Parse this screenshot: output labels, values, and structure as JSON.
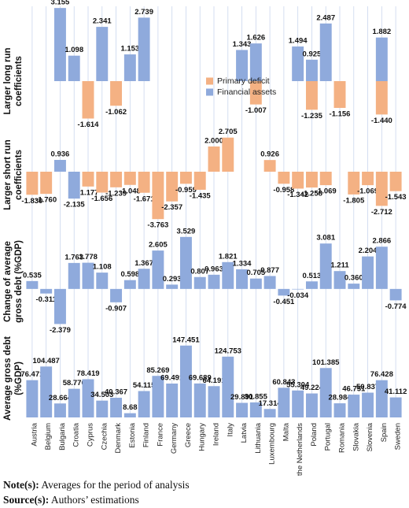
{
  "chart_data": {
    "type": "bar",
    "categories": [
      "Austria",
      "Belgium",
      "Bulgaria",
      "Croatia",
      "Cyprus",
      "Czechia",
      "Denmark",
      "Estonia",
      "Finland",
      "France",
      "Germany",
      "Greece",
      "Hungary",
      "Ireland",
      "Italy",
      "Latvia",
      "Lithuania",
      "Luxembourg",
      "Malta",
      "the Netherlands",
      "Poland",
      "Portugal",
      "Romania",
      "Slovakia",
      "Slovenia",
      "Spain",
      "Sweden"
    ],
    "panels": [
      {
        "ylabel": [
          "Larger long run",
          "coefficients"
        ],
        "ylim": [
          -3.5,
          3.5
        ],
        "series": [
          {
            "name": "Primary deficit",
            "color": "#f4b183",
            "values": [
              null,
              null,
              null,
              null,
              -1.614,
              null,
              -1.062,
              null,
              null,
              null,
              null,
              null,
              null,
              null,
              null,
              null,
              -1.007,
              null,
              null,
              null,
              -1.235,
              null,
              -1.156,
              null,
              null,
              -1.44,
              null
            ],
            "value_labels": [
              null,
              null,
              null,
              null,
              "-1.614",
              null,
              "-1.062",
              null,
              null,
              null,
              null,
              null,
              null,
              null,
              null,
              null,
              "-1.007",
              null,
              null,
              null,
              "-1.235",
              null,
              "-1.156",
              null,
              null,
              "-1.440",
              null
            ]
          },
          {
            "name": "Financial assets",
            "color": "#8faadc",
            "values": [
              null,
              null,
              3.155,
              1.098,
              null,
              2.341,
              null,
              1.153,
              2.739,
              null,
              null,
              null,
              null,
              null,
              null,
              1.343,
              1.626,
              null,
              null,
              1.494,
              0.925,
              2.487,
              null,
              null,
              null,
              1.882,
              null
            ],
            "value_labels": [
              null,
              null,
              "3.155",
              "1.098",
              null,
              "2.341",
              null,
              "1.153",
              "2.739",
              null,
              null,
              null,
              null,
              null,
              null,
              "1.343",
              "1.626",
              null,
              null,
              "1.494",
              "0.925",
              "2.487",
              null,
              null,
              null,
              "1.882",
              null
            ]
          }
        ]
      },
      {
        "ylabel": [
          "Larger short run",
          "coefficients"
        ],
        "ylim": [
          -4,
          3.5
        ],
        "series": [
          {
            "color": "#f4b183",
            "values": [
              -1.83,
              -1.76,
              null,
              null,
              -1.177,
              -1.656,
              -1.239,
              -1.048,
              -1.671,
              -3.763,
              -2.357,
              -0.959,
              -1.435,
              2,
              2.705,
              null,
              null,
              0.926,
              -0.958,
              -1.342,
              -1.258,
              -1.069,
              null,
              -1.805,
              -1.069,
              -2.712,
              -1.543
            ],
            "value_labels": [
              "-1.830",
              "-1.760",
              null,
              null,
              "-1.177",
              "-1.656",
              "-1.239",
              "-1.048",
              "-1.671",
              "-3.763",
              "-2.357",
              "-0.959",
              "-1.435",
              "2.000",
              "2.705",
              null,
              null,
              "0.926",
              "-0.958",
              "-1.342",
              "-1.258",
              "-1.069",
              null,
              "-1.805",
              "-1.069",
              "-2.712",
              "-1.543"
            ]
          },
          {
            "color": "#8faadc",
            "values": [
              null,
              null,
              0.936,
              -2.135,
              null,
              null,
              null,
              null,
              null,
              null,
              null,
              null,
              null,
              null,
              null,
              null,
              null,
              null,
              null,
              null,
              null,
              null,
              null,
              null,
              null,
              null,
              null
            ],
            "value_labels": [
              null,
              null,
              "0.936",
              "-2.135",
              null,
              null,
              null,
              null,
              null,
              null,
              null,
              null,
              null,
              null,
              null,
              null,
              null,
              null,
              null,
              null,
              null,
              null,
              null,
              null,
              null,
              null,
              null
            ]
          }
        ]
      },
      {
        "ylabel": [
          "Change of average",
          "gross debt (%GDP)"
        ],
        "ylim": [
          -3,
          4
        ],
        "series": [
          {
            "color": "#8faadc",
            "values": [
              0.535,
              -0.311,
              -2.379,
              1.763,
              1.778,
              1.108,
              -0.907,
              0.598,
              1.367,
              2.605,
              0.293,
              3.529,
              0.807,
              0.963,
              1.821,
              1.334,
              0.705,
              0.877,
              -0.451,
              -0.034,
              0.513,
              3.081,
              1.211,
              0.36,
              2.204,
              2.866,
              -0.774
            ],
            "value_labels": [
              "0.535",
              "-0.311",
              "-2.379",
              "1.763",
              "1.778",
              "1.108",
              "-0.907",
              "0.598",
              "1.367",
              "2.605",
              "0.293",
              "3.529",
              "0.807",
              "0.963",
              "1.821",
              "1.334",
              "0.705",
              "0.877",
              "-0.451",
              "-0.034",
              "0.513",
              "3.081",
              "1.211",
              "0.360",
              "2.204",
              "2.866",
              "-0.774"
            ]
          }
        ]
      },
      {
        "ylabel": [
          "Average gross debt",
          "(%GDP)"
        ],
        "ylim": [
          0,
          160
        ],
        "series": [
          {
            "color": "#8faadc",
            "values": [
              76.471,
              104.487,
              28.664,
              58.776,
              78.419,
              34.503,
              40.367,
              8.68,
              54.115,
              85.269,
              69.491,
              147.451,
              69.689,
              64.191,
              124.753,
              29.891,
              30.855,
              17.314,
              60.843,
              55.304,
              49.224,
              101.385,
              28.984,
              46.751,
              50.837,
              76.428,
              41.112
            ],
            "value_labels": [
              "76.471",
              "104.487",
              "28.664",
              "58.776",
              "78.419",
              "34.503",
              "40.367",
              "8.68",
              "54.115",
              "85.269",
              "69.491",
              "147.451",
              "69.689",
              "64.191",
              "124.753",
              "29.891",
              "30.855",
              "17.314",
              "60.843",
              "55.304",
              "49.224",
              "101.385",
              "28.984",
              "46.751",
              "50.837",
              "76.428",
              "41.112"
            ]
          }
        ]
      }
    ]
  },
  "notes": [
    {
      "label": "Note(s):",
      "text": "Averages for the period of analysis"
    },
    {
      "label": "Source(s):",
      "text": "Authors’ estimations"
    }
  ]
}
